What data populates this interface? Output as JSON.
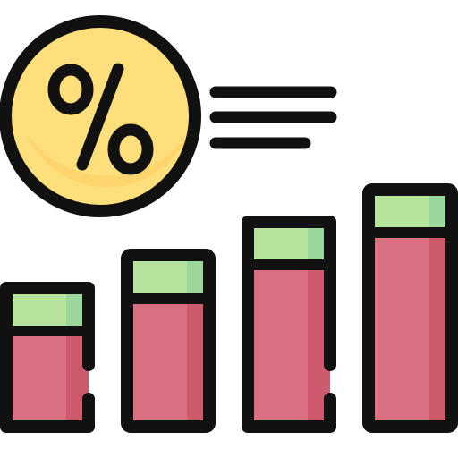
{
  "icon": {
    "name": "percentage-growth-bar-chart-icon",
    "symbol": "%"
  },
  "colors": {
    "outline": "#111111",
    "badge_fill": "#FEDF7C",
    "badge_shade": "#FCCE62",
    "bar_fill": "#D96F80",
    "bar_shade": "#CE5A6D",
    "cap_fill": "#B7E49C",
    "cap_shade": "#9BD69A",
    "background": "#FFFFFF"
  },
  "bars": {
    "count": 4,
    "relative_heights": [
      0.57,
      0.71,
      0.84,
      1.0
    ]
  },
  "text_lines": {
    "count": 3,
    "relative_lengths": [
      1.0,
      1.0,
      0.78
    ]
  }
}
